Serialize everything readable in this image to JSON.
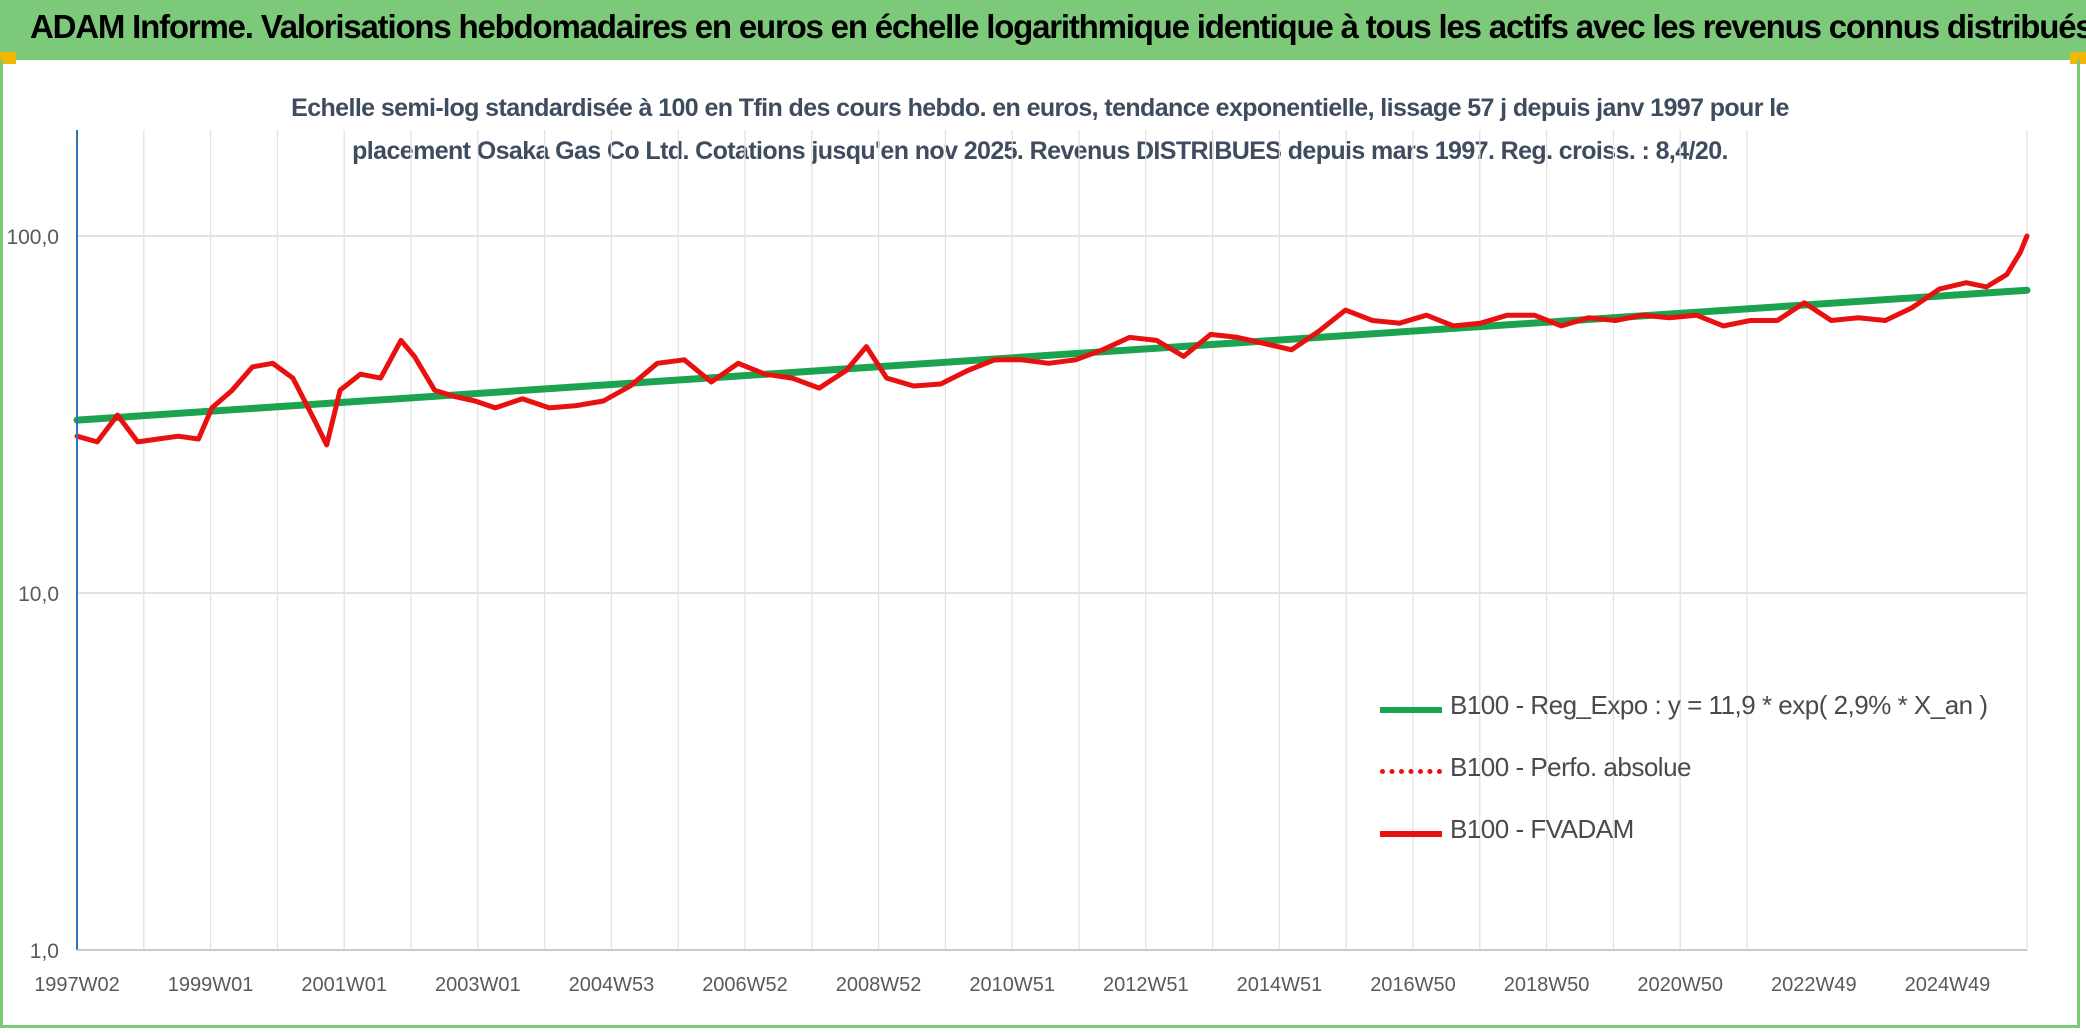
{
  "banner": {
    "title": "ADAM Informe. Valorisations hebdomadaires en euros en échelle logarithmique identique à tous les actifs avec les revenus connus distribués"
  },
  "colors": {
    "banner": "#7dc97a",
    "regression": "#1ba350",
    "fvadam": "#e8110f",
    "corner": "#f2b705"
  },
  "chart_data": {
    "type": "line",
    "title": "Echelle semi-log standardisée à 100 en Tfin des cours hebdo. en euros, tendance exponentielle, lissage 57 j depuis janv 1997 pour le placement Osaka Gas Co Ltd. Cotations jusqu'en nov 2025. Revenus DISTRIBUES depuis mars 1997. Reg. croiss. : 8,4/20.",
    "y_scale": "log",
    "ylim": [
      1,
      100
    ],
    "y_ticks": [
      "100,0",
      "10,0",
      "1,0"
    ],
    "x_ticks": [
      "1997W02",
      "1999W01",
      "2001W01",
      "2003W01",
      "2004W53",
      "2006W52",
      "2008W52",
      "2010W51",
      "2012W51",
      "2014W51",
      "2016W50",
      "2018W50",
      "2020W50",
      "2022W49",
      "2024W49"
    ],
    "xlim": [
      1997.0,
      2025.9
    ],
    "grid": true,
    "legend_position": "bottom-right",
    "series": [
      {
        "name": "B100 - Reg_Expo : y = 11,9 * exp( 2,9% *  X_an )",
        "style": "solid-thick",
        "color": "#1ba350",
        "x": [
          1997.0,
          2025.9
        ],
        "y": [
          30.5,
          70.5
        ]
      },
      {
        "name": "B100 - Perfo. absolue",
        "style": "dotted",
        "color": "#e8110f",
        "x": [],
        "y": []
      },
      {
        "name": "B100 - FVADAM",
        "style": "solid",
        "color": "#e8110f",
        "x": [
          1997.0,
          1997.3,
          1997.6,
          1997.9,
          1998.2,
          1998.5,
          1998.8,
          1999.0,
          1999.3,
          1999.6,
          1999.9,
          2000.2,
          2000.5,
          2000.7,
          2000.9,
          2001.2,
          2001.5,
          2001.8,
          2002.0,
          2002.3,
          2002.6,
          2002.9,
          2003.2,
          2003.6,
          2004.0,
          2004.4,
          2004.8,
          2005.2,
          2005.6,
          2006.0,
          2006.4,
          2006.8,
          2007.2,
          2007.6,
          2008.0,
          2008.4,
          2008.7,
          2009.0,
          2009.4,
          2009.8,
          2010.2,
          2010.6,
          2011.0,
          2011.4,
          2011.8,
          2012.2,
          2012.6,
          2013.0,
          2013.4,
          2013.8,
          2014.2,
          2014.6,
          2015.0,
          2015.4,
          2015.8,
          2016.2,
          2016.6,
          2017.0,
          2017.4,
          2017.8,
          2018.2,
          2018.6,
          2019.0,
          2019.4,
          2019.8,
          2020.2,
          2020.6,
          2021.0,
          2021.4,
          2021.8,
          2022.2,
          2022.6,
          2023.0,
          2023.4,
          2023.8,
          2024.2,
          2024.6,
          2025.0,
          2025.3,
          2025.6,
          2025.8,
          2025.9
        ],
        "y": [
          27.5,
          26.5,
          31.5,
          26.5,
          27.0,
          27.5,
          27.0,
          33.0,
          37.0,
          43.0,
          44.0,
          40.0,
          31.0,
          26.0,
          37.0,
          41.0,
          40.0,
          51.0,
          46.0,
          37.0,
          35.5,
          34.5,
          33.0,
          35.0,
          33.0,
          33.5,
          34.5,
          38.0,
          44.0,
          45.0,
          39.0,
          44.0,
          41.0,
          40.0,
          37.5,
          42.0,
          49.0,
          40.0,
          38.0,
          38.5,
          42.0,
          45.0,
          45.0,
          44.0,
          45.0,
          48.0,
          52.0,
          51.0,
          46.0,
          53.0,
          52.0,
          50.0,
          48.0,
          54.0,
          62.0,
          58.0,
          57.0,
          60.0,
          56.0,
          57.0,
          60.0,
          60.0,
          56.0,
          59.0,
          58.0,
          60.0,
          59.0,
          60.0,
          56.0,
          58.0,
          58.0,
          65.0,
          58.0,
          59.0,
          58.0,
          63.0,
          71.0,
          74.0,
          72.0,
          78.0,
          90.0,
          100.0
        ]
      }
    ]
  }
}
